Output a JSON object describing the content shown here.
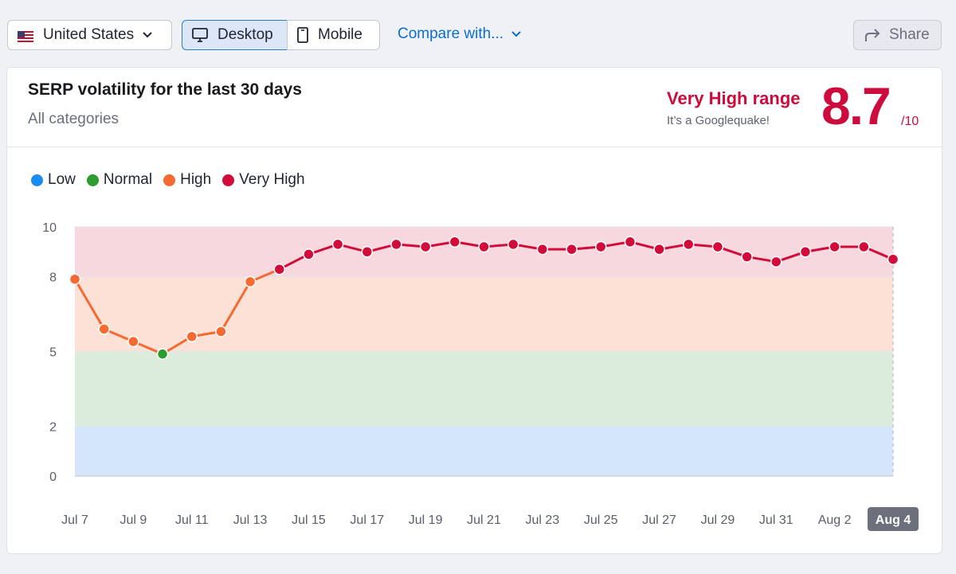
{
  "toolbar": {
    "country": "United States",
    "desktop": "Desktop",
    "mobile": "Mobile",
    "compare": "Compare with...",
    "share": "Share"
  },
  "card": {
    "title": "SERP volatility for the last 30 days",
    "subtitle": "All categories",
    "range_label": "Very High range",
    "range_sub": "It’s a Googlequake!",
    "score": "8.7",
    "score_max": "/10"
  },
  "legend": [
    {
      "label": "Low",
      "color": "#1a8cf0"
    },
    {
      "label": "Normal",
      "color": "#2e9b2e"
    },
    {
      "label": "High",
      "color": "#f46a30"
    },
    {
      "label": "Very High",
      "color": "#d10b3a"
    }
  ],
  "chart_data": {
    "type": "line",
    "x": [
      "Jul 7",
      "Jul 8",
      "Jul 9",
      "Jul 10",
      "Jul 11",
      "Jul 12",
      "Jul 13",
      "Jul 14",
      "Jul 15",
      "Jul 16",
      "Jul 17",
      "Jul 18",
      "Jul 19",
      "Jul 20",
      "Jul 21",
      "Jul 22",
      "Jul 23",
      "Jul 24",
      "Jul 25",
      "Jul 26",
      "Jul 27",
      "Jul 28",
      "Jul 29",
      "Jul 30",
      "Jul 31",
      "Aug 1",
      "Aug 2",
      "Aug 3",
      "Aug 4"
    ],
    "values": [
      7.9,
      5.9,
      5.4,
      4.9,
      5.6,
      5.8,
      7.8,
      8.3,
      8.9,
      9.3,
      9.0,
      9.3,
      9.2,
      9.4,
      9.2,
      9.3,
      9.1,
      9.1,
      9.2,
      9.4,
      9.1,
      9.3,
      9.2,
      8.8,
      8.6,
      9.0,
      9.2,
      9.2,
      8.7
    ],
    "x_tick_labels": [
      "Jul 7",
      "Jul 9",
      "Jul 11",
      "Jul 13",
      "Jul 15",
      "Jul 17",
      "Jul 19",
      "Jul 21",
      "Jul 23",
      "Jul 25",
      "Jul 27",
      "Jul 29",
      "Jul 31",
      "Aug 2",
      "Aug 4"
    ],
    "highlighted_tick": "Aug 4",
    "y_ticks": [
      0,
      2,
      5,
      8,
      10
    ],
    "ylim": [
      0,
      10
    ],
    "bands": [
      {
        "name": "Low",
        "from": 0,
        "to": 2,
        "color": "#d3e6fb"
      },
      {
        "name": "Normal",
        "from": 2,
        "to": 5,
        "color": "#dcecdc"
      },
      {
        "name": "High",
        "from": 5,
        "to": 8,
        "color": "#fde0d6"
      },
      {
        "name": "Very High",
        "from": 8,
        "to": 10,
        "color": "#f6d8de"
      }
    ],
    "grid": true
  }
}
